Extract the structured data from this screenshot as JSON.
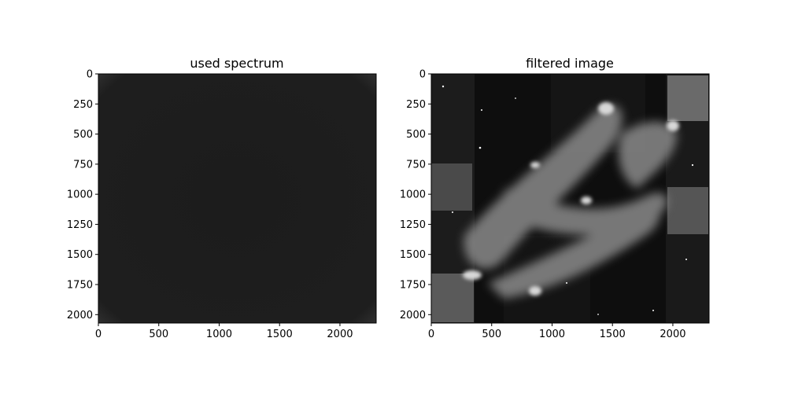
{
  "chart_data": [
    {
      "type": "heatmap",
      "title": "used spectrum",
      "xlabel": "",
      "ylabel": "",
      "xlim": [
        0,
        2300
      ],
      "ylim": [
        2070,
        0
      ],
      "x_ticks": [
        0,
        500,
        1000,
        1500,
        2000
      ],
      "y_ticks": [
        0,
        250,
        500,
        750,
        1000,
        1250,
        1500,
        1750,
        2000
      ],
      "colormap": "gray",
      "content": "near-uniform dark gray spectrum with faint brighter corners"
    },
    {
      "type": "heatmap",
      "title": "filtered image",
      "xlabel": "",
      "ylabel": "",
      "xlim": [
        0,
        2300
      ],
      "ylim": [
        2070,
        0
      ],
      "x_ticks": [
        0,
        500,
        1000,
        1500,
        2000
      ],
      "y_ticks": [
        0,
        250,
        500,
        750,
        1000,
        1250,
        1500,
        1750,
        2000
      ],
      "colormap": "gray",
      "content": "grayscale nebula image with diagonal bright dust pillars"
    }
  ],
  "colors": {
    "spectrum_fill": "#1d1d1d",
    "axes_edge": "#000000"
  }
}
